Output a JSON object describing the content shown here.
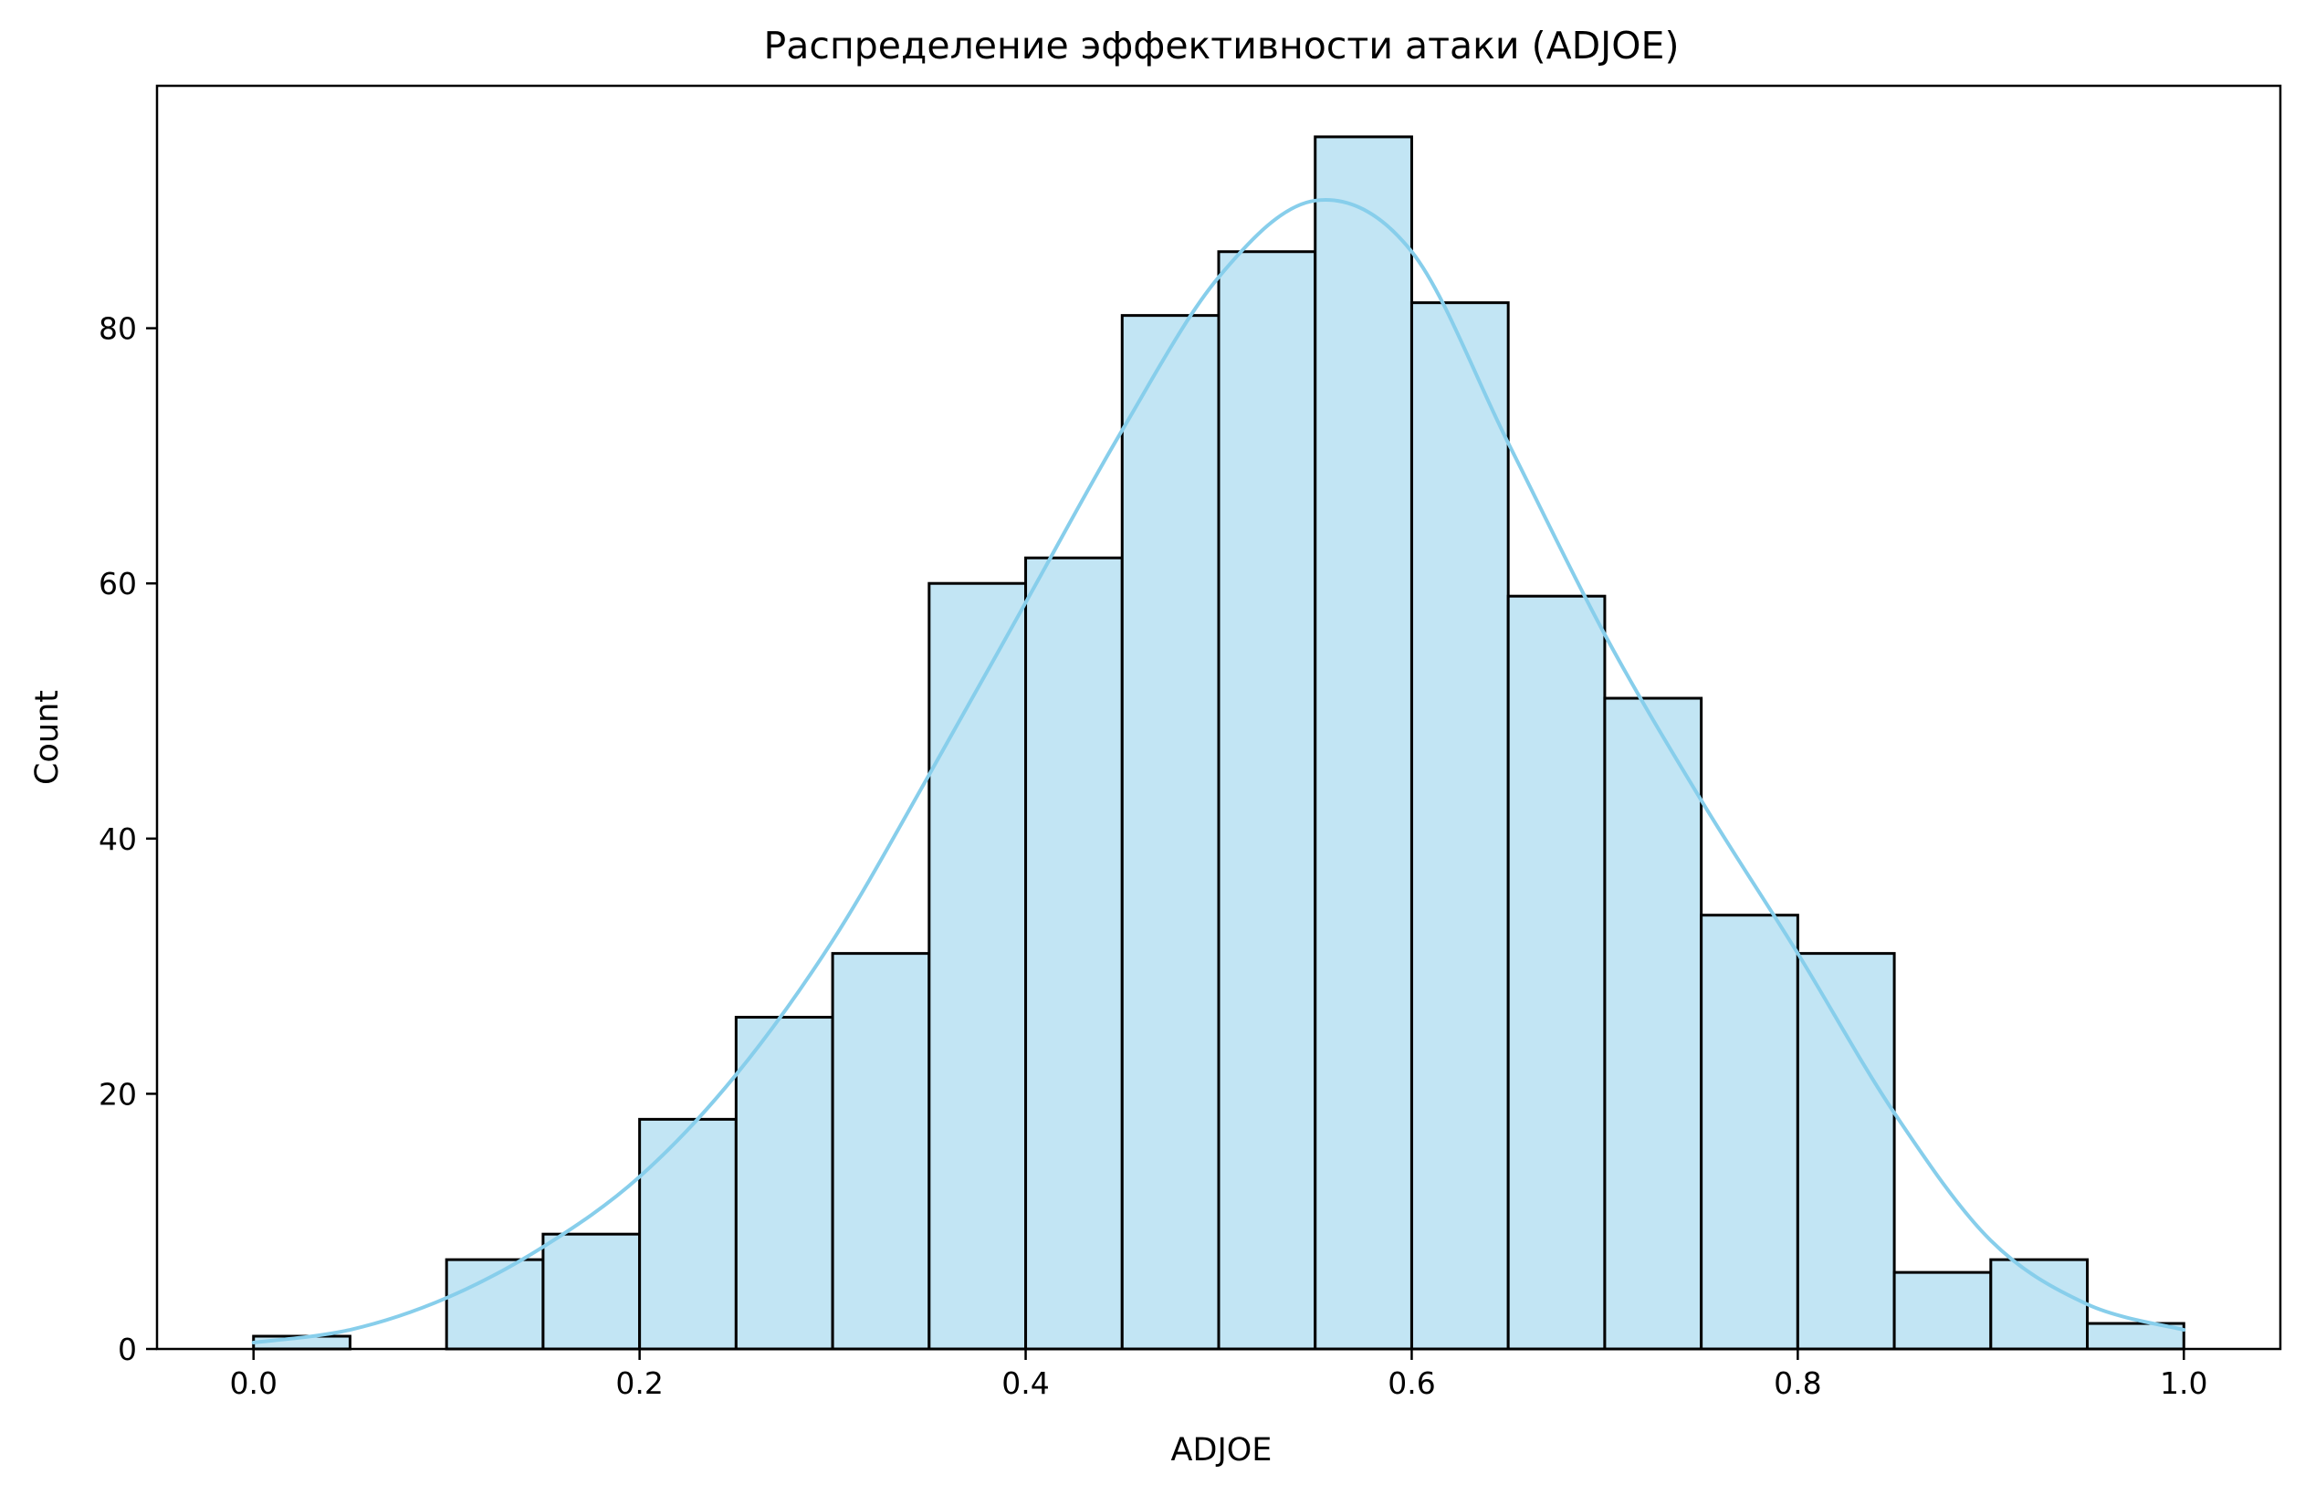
{
  "chart_data": {
    "type": "bar",
    "title": "Распределение эффективности атаки (ADJOE)",
    "xlabel": "ADJOE",
    "ylabel": "Count",
    "bin_edges": [
      0.0,
      0.05,
      0.1,
      0.15,
      0.2,
      0.25,
      0.3,
      0.35,
      0.4,
      0.45,
      0.5,
      0.55,
      0.6,
      0.65,
      0.7,
      0.75,
      0.8,
      0.85,
      0.9,
      0.95,
      1.0
    ],
    "values": [
      1,
      0,
      7,
      9,
      18,
      26,
      31,
      60,
      62,
      81,
      86,
      95,
      82,
      59,
      51,
      34,
      31,
      6,
      7,
      2
    ],
    "kde": {
      "x": [
        0.0,
        0.05,
        0.1,
        0.15,
        0.2,
        0.25,
        0.3,
        0.35,
        0.4,
        0.45,
        0.5,
        0.55,
        0.6,
        0.65,
        0.7,
        0.75,
        0.8,
        0.85,
        0.9,
        0.95,
        1.0
      ],
      "y": [
        0.5,
        1.5,
        4,
        8,
        13.5,
        21.5,
        32,
        45,
        58.5,
        72,
        84,
        90,
        86,
        71,
        56,
        43,
        31,
        18.5,
        8.5,
        3.5,
        1.5
      ]
    },
    "xlim": [
      -0.05,
      1.05
    ],
    "ylim": [
      0,
      99
    ],
    "xticks": [
      "0.0",
      "0.2",
      "0.4",
      "0.6",
      "0.8",
      "1.0"
    ],
    "yticks": [
      "0",
      "20",
      "40",
      "60",
      "80"
    ],
    "grid": false,
    "colors": {
      "bar_fill": "#c2e5f4",
      "bar_edge": "#000000",
      "kde_line": "#87ceeb"
    }
  }
}
